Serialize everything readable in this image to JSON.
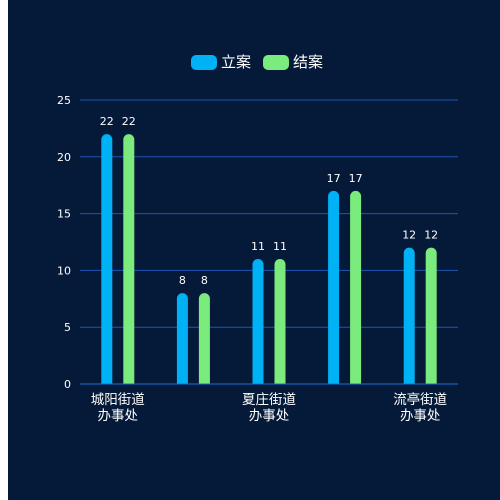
{
  "colors": {
    "panel_bg": "#051938",
    "axis": "#1f6fd6",
    "grid": "#1c56b4",
    "text": "#ffffff"
  },
  "chart_data": {
    "type": "bar",
    "categories": [
      "城阳街道办事处",
      "",
      "夏庄街道办事处",
      "",
      "流亭街道办事处"
    ],
    "category_label_lines": [
      [
        "城阳街道",
        "办事处"
      ],
      [],
      [
        "夏庄街道",
        "办事处"
      ],
      [],
      [
        "流亭街道",
        "办事处"
      ]
    ],
    "series": [
      {
        "name": "立案",
        "color": "#00b1f6",
        "values": [
          22,
          8,
          11,
          17,
          12
        ]
      },
      {
        "name": "结案",
        "color": "#7ceb7e",
        "values": [
          22,
          8,
          11,
          17,
          12
        ]
      }
    ],
    "ylim": [
      0,
      25
    ],
    "yticks": [
      0,
      5,
      10,
      15,
      20,
      25
    ],
    "grid": true,
    "legend": "top-center",
    "data_labels": true
  }
}
